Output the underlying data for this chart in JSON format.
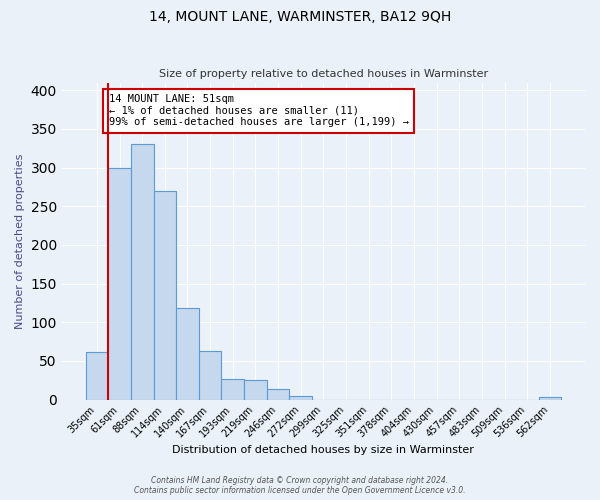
{
  "title": "14, MOUNT LANE, WARMINSTER, BA12 9QH",
  "subtitle": "Size of property relative to detached houses in Warminster",
  "xlabel": "Distribution of detached houses by size in Warminster",
  "ylabel": "Number of detached properties",
  "bar_labels": [
    "35sqm",
    "61sqm",
    "88sqm",
    "114sqm",
    "140sqm",
    "167sqm",
    "193sqm",
    "219sqm",
    "246sqm",
    "272sqm",
    "299sqm",
    "325sqm",
    "351sqm",
    "378sqm",
    "404sqm",
    "430sqm",
    "457sqm",
    "483sqm",
    "509sqm",
    "536sqm",
    "562sqm"
  ],
  "bar_values": [
    62,
    300,
    330,
    270,
    118,
    63,
    27,
    25,
    14,
    5,
    0,
    0,
    0,
    0,
    0,
    0,
    0,
    0,
    0,
    0,
    3
  ],
  "bar_color": "#c5d8ed",
  "bar_edge_color": "#5b9bd5",
  "bg_color": "#eaf1f8",
  "grid_color": "#ffffff",
  "annotation_text": "14 MOUNT LANE: 51sqm\n← 1% of detached houses are smaller (11)\n99% of semi-detached houses are larger (1,199) →",
  "annotation_box_color": "#ffffff",
  "annotation_box_edge": "#cc0000",
  "red_line_x": 0.5,
  "property_sqm": 51,
  "ylim": [
    0,
    410
  ],
  "footer1": "Contains HM Land Registry data © Crown copyright and database right 2024.",
  "footer2": "Contains public sector information licensed under the Open Government Licence v3.0."
}
